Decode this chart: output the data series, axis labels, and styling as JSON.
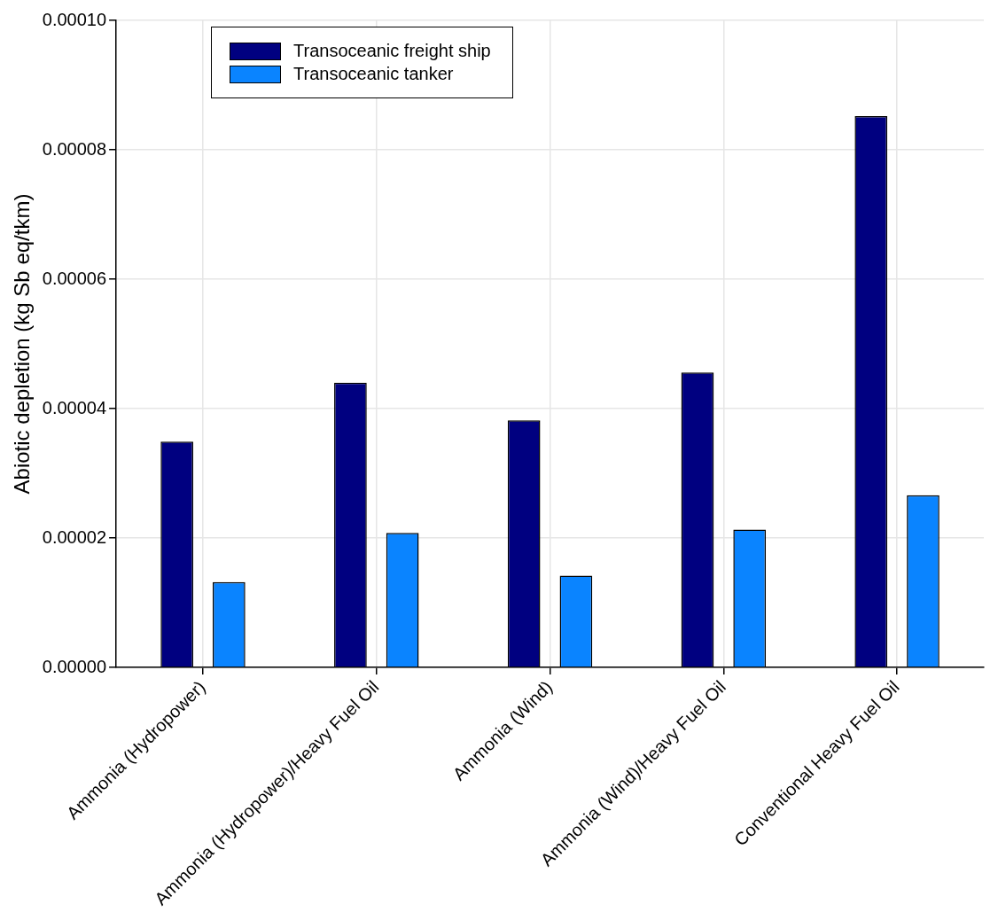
{
  "chart_data": {
    "type": "bar",
    "ylabel": "Abiotic depletion (kg Sb eq/tkm)",
    "categories": [
      "Ammonia (Hydropower)",
      "Ammonia (Hydropower)/Heavy Fuel Oil",
      "Ammonia (Wind)",
      "Ammonia (Wind)/Heavy Fuel Oil",
      "Conventional Heavy Fuel Oil"
    ],
    "series": [
      {
        "name": "Transoceanic freight ship",
        "color": "#000080",
        "values": [
          3.49e-05,
          4.4e-05,
          3.82e-05,
          4.56e-05,
          8.52e-05
        ]
      },
      {
        "name": "Transoceanic tanker",
        "color": "#0a84ff",
        "values": [
          1.32e-05,
          2.08e-05,
          1.42e-05,
          2.13e-05,
          2.66e-05
        ]
      }
    ],
    "ylim": [
      0,
      0.0001
    ],
    "yticks": [
      {
        "value": 0,
        "label": "0.00000"
      },
      {
        "value": 2e-05,
        "label": "0.00002"
      },
      {
        "value": 4e-05,
        "label": "0.00004"
      },
      {
        "value": 6e-05,
        "label": "0.00006"
      },
      {
        "value": 8e-05,
        "label": "0.00008"
      },
      {
        "value": 0.0001,
        "label": "0.00010"
      }
    ],
    "grid": true,
    "legend": "top left"
  }
}
